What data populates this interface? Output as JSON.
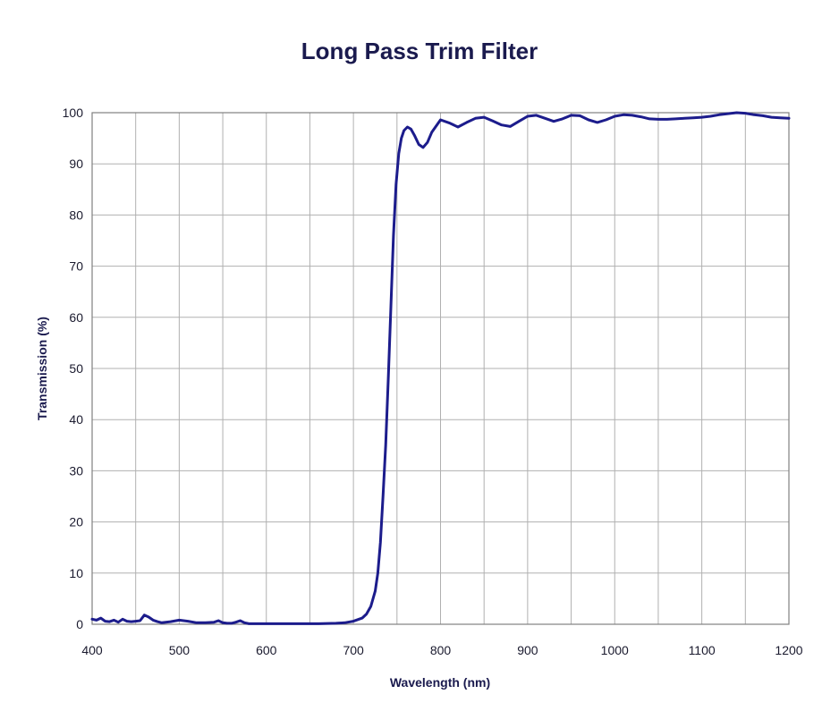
{
  "chart_data": {
    "type": "line",
    "title": "Long Pass Trim Filter",
    "xlabel": "Wavelength (nm)",
    "ylabel": "Transmission (%)",
    "xlim": [
      400,
      1200
    ],
    "ylim": [
      0,
      100
    ],
    "x_ticks": [
      400,
      500,
      600,
      700,
      800,
      900,
      1000,
      1100,
      1200
    ],
    "y_ticks": [
      0,
      10,
      20,
      30,
      40,
      50,
      60,
      70,
      80,
      90,
      100
    ],
    "x_minor_step": 50,
    "grid": true,
    "legend": "none",
    "colors": {
      "line": "#1c1c8c",
      "grid": "#b0b0b0",
      "axis": "#808080",
      "text": "#1a1a4e"
    },
    "series": [
      {
        "x": [
          400,
          405,
          410,
          415,
          420,
          425,
          430,
          435,
          440,
          445,
          450,
          455,
          460,
          465,
          470,
          475,
          480,
          490,
          500,
          510,
          520,
          530,
          540,
          545,
          550,
          555,
          560,
          565,
          570,
          575,
          580,
          600,
          620,
          640,
          660,
          680,
          690,
          700,
          710,
          715,
          720,
          725,
          728,
          731,
          734,
          737,
          740,
          743,
          746,
          749,
          752,
          755,
          758,
          762,
          766,
          770,
          775,
          780,
          785,
          790,
          800,
          810,
          820,
          830,
          840,
          850,
          860,
          870,
          880,
          890,
          900,
          910,
          920,
          930,
          940,
          950,
          960,
          970,
          980,
          990,
          1000,
          1010,
          1020,
          1030,
          1040,
          1050,
          1060,
          1070,
          1080,
          1090,
          1100,
          1110,
          1120,
          1130,
          1140,
          1150,
          1160,
          1170,
          1180,
          1190,
          1200
        ],
        "values": [
          1.0,
          0.8,
          1.2,
          0.6,
          0.5,
          0.8,
          0.4,
          1.0,
          0.6,
          0.5,
          0.6,
          0.7,
          1.8,
          1.4,
          0.8,
          0.5,
          0.3,
          0.5,
          0.8,
          0.6,
          0.3,
          0.3,
          0.4,
          0.7,
          0.3,
          0.2,
          0.2,
          0.4,
          0.7,
          0.3,
          0.1,
          0.1,
          0.1,
          0.1,
          0.1,
          0.2,
          0.3,
          0.6,
          1.2,
          2.0,
          3.5,
          6.5,
          10.0,
          16.0,
          25.0,
          35.0,
          48.0,
          62.0,
          76.0,
          86.0,
          92.0,
          95.0,
          96.5,
          97.2,
          96.8,
          95.6,
          93.8,
          93.2,
          94.2,
          96.2,
          98.6,
          98.0,
          97.2,
          98.1,
          98.9,
          99.1,
          98.4,
          97.6,
          97.3,
          98.3,
          99.3,
          99.5,
          98.9,
          98.3,
          98.8,
          99.5,
          99.4,
          98.6,
          98.1,
          98.6,
          99.3,
          99.6,
          99.5,
          99.2,
          98.8,
          98.7,
          98.7,
          98.8,
          98.9,
          99.0,
          99.1,
          99.3,
          99.6,
          99.8,
          100.0,
          99.9,
          99.6,
          99.4,
          99.1,
          99.0,
          98.9
        ]
      }
    ]
  }
}
